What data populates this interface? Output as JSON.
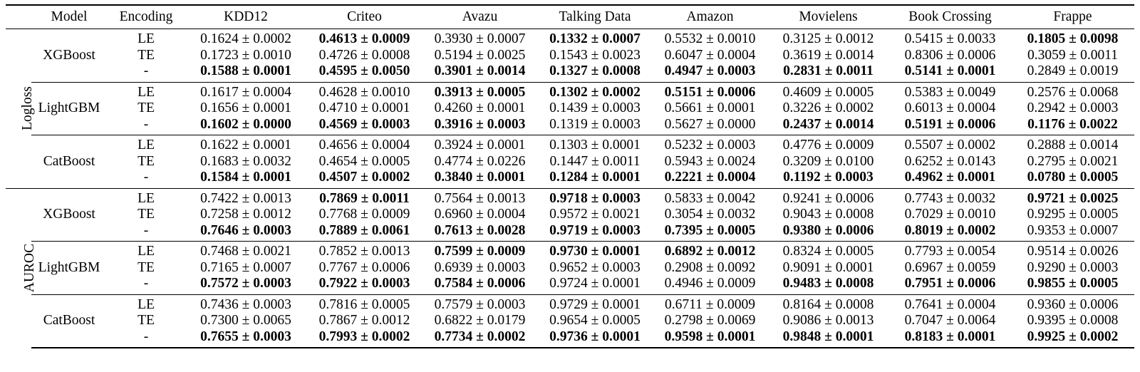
{
  "headers": [
    "",
    "Model",
    "Encoding",
    "KDD12",
    "Criteo",
    "Avazu",
    "Talking Data",
    "Amazon",
    "Movielens",
    "Book Crossing",
    "Frappe"
  ],
  "metrics": [
    {
      "name": "Logloss",
      "groups": [
        {
          "model": "XGBoost",
          "encodings": [
            "LE",
            "TE",
            "-"
          ],
          "values": [
            [
              "0.1624 ± 0.0002",
              "0.4613 ± 0.0009",
              "0.3930 ± 0.0007",
              "0.1332 ± 0.0007",
              "0.5532 ± 0.0010",
              "0.3125 ± 0.0012",
              "0.5415 ± 0.0033",
              "0.1805 ± 0.0098"
            ],
            [
              "0.1723 ± 0.0010",
              "0.4726 ± 0.0008",
              "0.5194 ± 0.0025",
              "0.1543 ± 0.0023",
              "0.6047 ± 0.0004",
              "0.3619 ± 0.0014",
              "0.8306 ± 0.0006",
              "0.3059 ± 0.0011"
            ],
            [
              "0.1588 ± 0.0001",
              "0.4595 ± 0.0050",
              "0.3901 ± 0.0014",
              "0.1327 ± 0.0008",
              "0.4947 ± 0.0003",
              "0.2831 ± 0.0011",
              "0.5141 ± 0.0001",
              "0.2849 ± 0.0019"
            ]
          ],
          "bold": [
            [
              false,
              true,
              false,
              true,
              false,
              false,
              false,
              true
            ],
            [
              false,
              false,
              false,
              false,
              false,
              false,
              false,
              false
            ],
            [
              true,
              true,
              true,
              true,
              true,
              true,
              true,
              false
            ]
          ]
        },
        {
          "model": "LightGBM",
          "encodings": [
            "LE",
            "TE",
            "-"
          ],
          "values": [
            [
              "0.1617 ± 0.0004",
              "0.4628 ± 0.0010",
              "0.3913 ± 0.0005",
              "0.1302 ± 0.0002",
              "0.5151 ± 0.0006",
              "0.4609 ± 0.0005",
              "0.5383 ± 0.0049",
              "0.2576 ± 0.0068"
            ],
            [
              "0.1656 ± 0.0001",
              "0.4710 ± 0.0001",
              "0.4260 ± 0.0001",
              "0.1439 ± 0.0003",
              "0.5661 ± 0.0001",
              "0.3226 ± 0.0002",
              "0.6013 ± 0.0004",
              "0.2942 ± 0.0003"
            ],
            [
              "0.1602 ± 0.0000",
              "0.4569 ± 0.0003",
              "0.3916 ± 0.0003",
              "0.1319 ± 0.0003",
              "0.5627 ± 0.0000",
              "0.2437 ± 0.0014",
              "0.5191 ± 0.0006",
              "0.1176 ± 0.0022"
            ]
          ],
          "bold": [
            [
              false,
              false,
              true,
              true,
              true,
              false,
              false,
              false
            ],
            [
              false,
              false,
              false,
              false,
              false,
              false,
              false,
              false
            ],
            [
              true,
              true,
              true,
              false,
              false,
              true,
              true,
              true
            ]
          ]
        },
        {
          "model": "CatBoost",
          "encodings": [
            "LE",
            "TE",
            "-"
          ],
          "values": [
            [
              "0.1622 ± 0.0001",
              "0.4656 ± 0.0004",
              "0.3924 ± 0.0001",
              "0.1303 ± 0.0001",
              "0.5232 ± 0.0003",
              "0.4776 ± 0.0009",
              "0.5507 ± 0.0002",
              "0.2888 ± 0.0014"
            ],
            [
              "0.1683 ± 0.0032",
              "0.4654 ± 0.0005",
              "0.4774 ± 0.0226",
              "0.1447 ± 0.0011",
              "0.5943 ± 0.0024",
              "0.3209 ± 0.0100",
              "0.6252 ± 0.0143",
              "0.2795 ± 0.0021"
            ],
            [
              "0.1584 ± 0.0001",
              "0.4507 ± 0.0002",
              "0.3840 ± 0.0001",
              "0.1284 ± 0.0001",
              "0.2221 ± 0.0004",
              "0.1192 ± 0.0003",
              "0.4962 ± 0.0001",
              "0.0780 ± 0.0005"
            ]
          ],
          "bold": [
            [
              false,
              false,
              false,
              false,
              false,
              false,
              false,
              false
            ],
            [
              false,
              false,
              false,
              false,
              false,
              false,
              false,
              false
            ],
            [
              true,
              true,
              true,
              true,
              true,
              true,
              true,
              true
            ]
          ]
        }
      ]
    },
    {
      "name": "AUROC",
      "groups": [
        {
          "model": "XGBoost",
          "encodings": [
            "LE",
            "TE",
            "-"
          ],
          "values": [
            [
              "0.7422 ± 0.0013",
              "0.7869 ± 0.0011",
              "0.7564 ± 0.0013",
              "0.9718 ± 0.0003",
              "0.5833 ± 0.0042",
              "0.9241 ± 0.0006",
              "0.7743 ± 0.0032",
              "0.9721 ± 0.0025"
            ],
            [
              "0.7258 ± 0.0012",
              "0.7768 ± 0.0009",
              "0.6960 ± 0.0004",
              "0.9572 ± 0.0021",
              "0.3054 ± 0.0032",
              "0.9043 ± 0.0008",
              "0.7029 ± 0.0010",
              "0.9295 ± 0.0005"
            ],
            [
              "0.7646 ± 0.0003",
              "0.7889 ± 0.0061",
              "0.7613 ± 0.0028",
              "0.9719 ± 0.0003",
              "0.7395 ± 0.0005",
              "0.9380 ± 0.0006",
              "0.8019 ± 0.0002",
              "0.9353 ± 0.0007"
            ]
          ],
          "bold": [
            [
              false,
              true,
              false,
              true,
              false,
              false,
              false,
              true
            ],
            [
              false,
              false,
              false,
              false,
              false,
              false,
              false,
              false
            ],
            [
              true,
              true,
              true,
              true,
              true,
              true,
              true,
              false
            ]
          ]
        },
        {
          "model": "LightGBM",
          "encodings": [
            "LE",
            "TE",
            "-"
          ],
          "values": [
            [
              "0.7468 ± 0.0021",
              "0.7852 ± 0.0013",
              "0.7599 ± 0.0009",
              "0.9730 ± 0.0001",
              "0.6892 ± 0.0012",
              "0.8324 ± 0.0005",
              "0.7793 ± 0.0054",
              "0.9514 ± 0.0026"
            ],
            [
              "0.7165 ± 0.0007",
              "0.7767 ± 0.0006",
              "0.6939 ± 0.0003",
              "0.9652 ± 0.0003",
              "0.2908 ± 0.0092",
              "0.9091 ± 0.0001",
              "0.6967 ± 0.0059",
              "0.9290 ± 0.0003"
            ],
            [
              "0.7572 ± 0.0003",
              "0.7922 ± 0.0003",
              "0.7584 ± 0.0006",
              "0.9724 ± 0.0001",
              "0.4946 ± 0.0009",
              "0.9483 ± 0.0008",
              "0.7951 ± 0.0006",
              "0.9855 ± 0.0005"
            ]
          ],
          "bold": [
            [
              false,
              false,
              true,
              true,
              true,
              false,
              false,
              false
            ],
            [
              false,
              false,
              false,
              false,
              false,
              false,
              false,
              false
            ],
            [
              true,
              true,
              true,
              false,
              false,
              true,
              true,
              true
            ]
          ]
        },
        {
          "model": "CatBoost",
          "encodings": [
            "LE",
            "TE",
            "-"
          ],
          "values": [
            [
              "0.7436 ± 0.0003",
              "0.7816 ± 0.0005",
              "0.7579 ± 0.0003",
              "0.9729 ± 0.0001",
              "0.6711 ± 0.0009",
              "0.8164 ± 0.0008",
              "0.7641 ± 0.0004",
              "0.9360 ± 0.0006"
            ],
            [
              "0.7300 ± 0.0065",
              "0.7867 ± 0.0012",
              "0.6822 ± 0.0179",
              "0.9654 ± 0.0005",
              "0.2798 ± 0.0069",
              "0.9086 ± 0.0013",
              "0.7047 ± 0.0064",
              "0.9395 ± 0.0008"
            ],
            [
              "0.7655 ± 0.0003",
              "0.7993 ± 0.0002",
              "0.7734 ± 0.0002",
              "0.9736 ± 0.0001",
              "0.9598 ± 0.0001",
              "0.9848 ± 0.0001",
              "0.8183 ± 0.0001",
              "0.9925 ± 0.0002"
            ]
          ],
          "bold": [
            [
              false,
              false,
              false,
              false,
              false,
              false,
              false,
              false
            ],
            [
              false,
              false,
              false,
              false,
              false,
              false,
              false,
              false
            ],
            [
              true,
              true,
              true,
              true,
              true,
              true,
              true,
              true
            ]
          ]
        }
      ]
    }
  ]
}
